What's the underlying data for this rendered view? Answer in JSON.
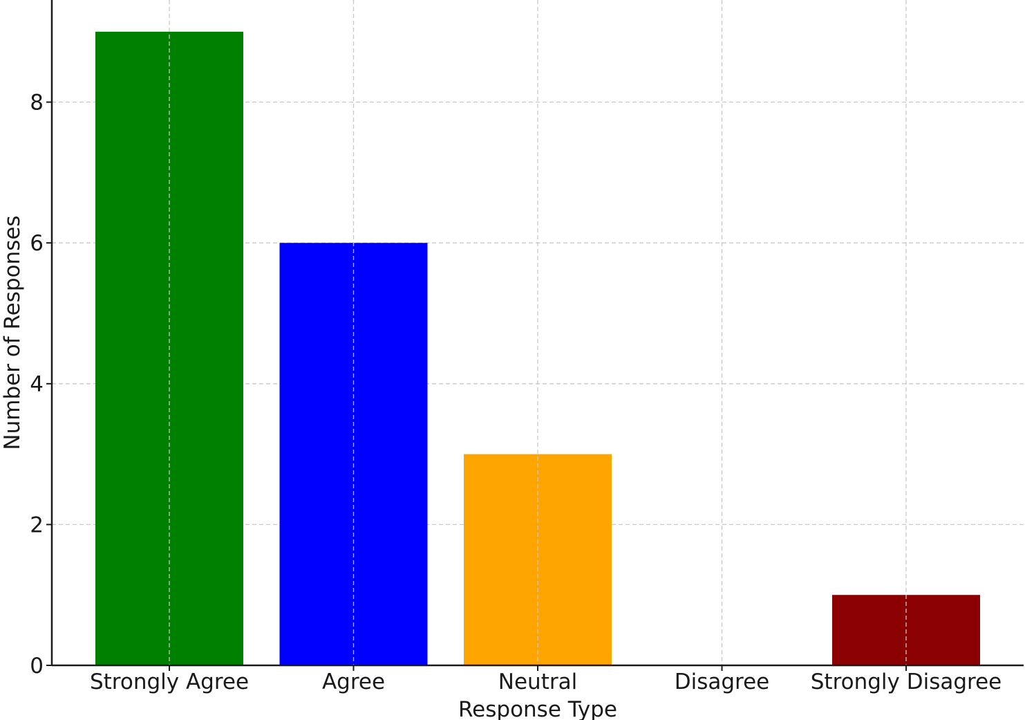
{
  "chart_data": {
    "type": "bar",
    "title": "",
    "xlabel": "Response Type",
    "ylabel": "Number of Responses",
    "categories": [
      "Strongly Agree",
      "Agree",
      "Neutral",
      "Disagree",
      "Strongly Disagree"
    ],
    "values": [
      9,
      6,
      3,
      0,
      1
    ],
    "colors": [
      "#008000",
      "#0000ff",
      "#ffa500",
      "#ff0000",
      "#8b0000"
    ],
    "yticks": [
      0,
      2,
      4,
      6,
      8
    ],
    "ylim": [
      0,
      9.45
    ],
    "grid": true,
    "legend": false
  }
}
